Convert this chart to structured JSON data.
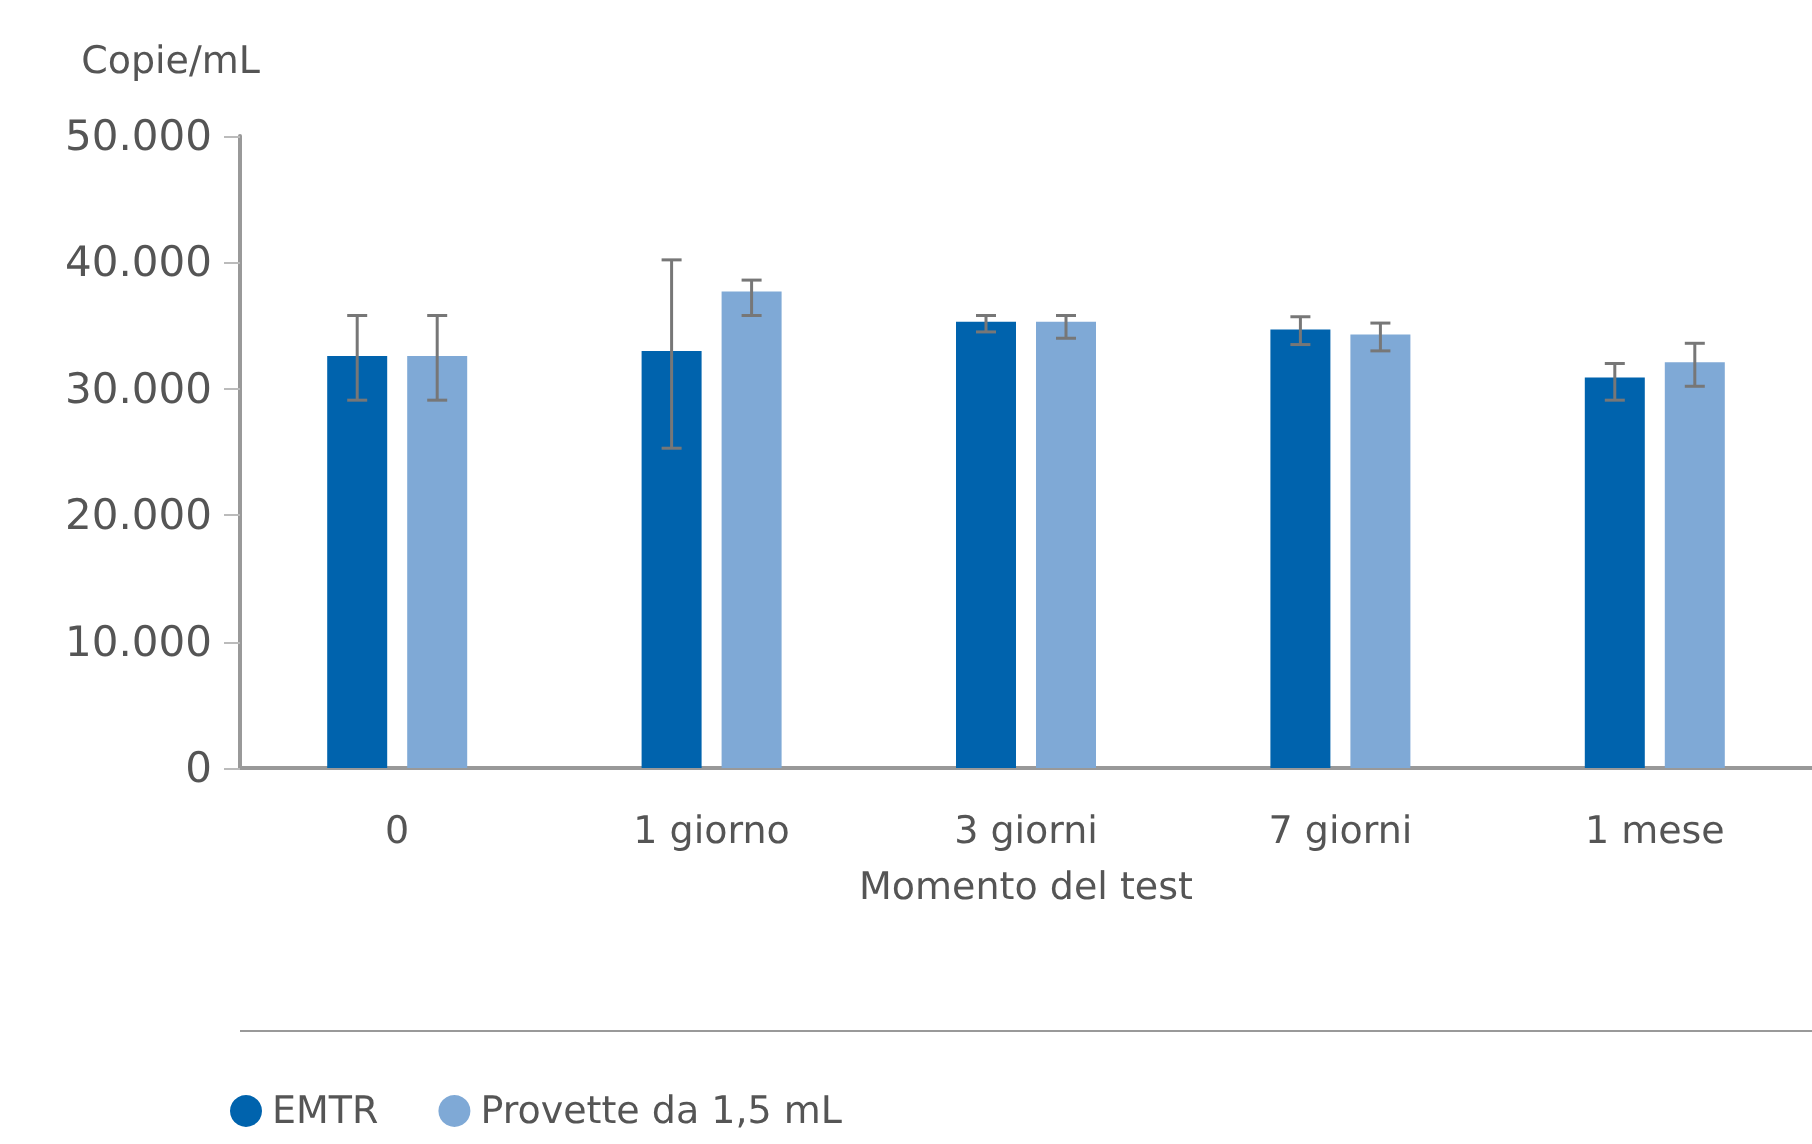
{
  "chart_data": {
    "type": "bar",
    "ylabel": "Copie/mL",
    "xlabel": "Momento del test",
    "categories": [
      "0",
      "1 giorno",
      "3 giorni",
      "7 giorni",
      "1 mese"
    ],
    "series": [
      {
        "name": "EMTR",
        "color": "#0063ad",
        "values": [
          32600,
          33000,
          35300,
          34700,
          30900
        ],
        "errors": [
          [
            29100,
            35800
          ],
          [
            25300,
            40200
          ],
          [
            34500,
            35800
          ],
          [
            33500,
            35700
          ],
          [
            29100,
            32000
          ]
        ]
      },
      {
        "name": "Provette da 1,5 mL",
        "color": "#7fa9d6",
        "values": [
          32600,
          37700,
          35300,
          34300,
          32100
        ],
        "errors": [
          [
            29100,
            35800
          ],
          [
            35800,
            38600
          ],
          [
            34000,
            35800
          ],
          [
            33000,
            35200
          ],
          [
            30200,
            33600
          ]
        ]
      }
    ],
    "ylim": [
      0,
      50000
    ],
    "yticks": [
      {
        "value": 0,
        "label": "0"
      },
      {
        "value": 10000,
        "label": "10.000"
      },
      {
        "value": 20000,
        "label": "20.000"
      },
      {
        "value": 30000,
        "label": "30.000"
      },
      {
        "value": 40000,
        "label": "40.000"
      },
      {
        "value": 50000,
        "label": "50.000"
      }
    ],
    "grid": false,
    "legend": "bottom left"
  }
}
